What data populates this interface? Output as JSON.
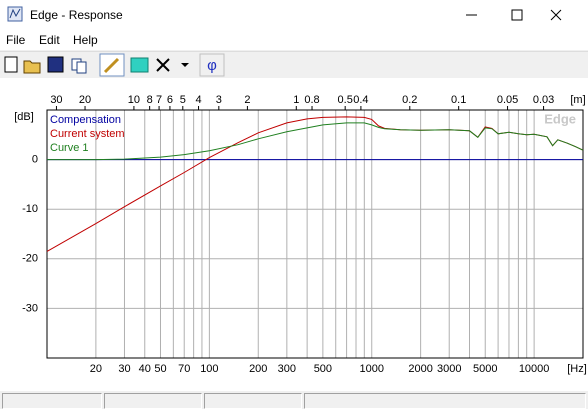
{
  "window": {
    "title": "Edge - Response",
    "menu": [
      "File",
      "Edit",
      "Help"
    ],
    "toolbar": {
      "phase_button": "φ"
    }
  },
  "chart_data": {
    "type": "line",
    "watermark": "Edge",
    "y_unit": "[dB]",
    "x_unit": "[Hz]",
    "x2_unit": "[m]",
    "x_scale": "log",
    "x2_scale": "log",
    "xlim": [
      10,
      20000
    ],
    "xticks": [
      20,
      30,
      40,
      50,
      70,
      100,
      200,
      300,
      500,
      1000,
      2000,
      3000,
      5000,
      10000
    ],
    "xgrid": [
      60,
      80,
      90,
      400,
      600,
      700,
      800,
      900,
      4000,
      6000,
      7000,
      8000,
      9000
    ],
    "x2lim": [
      34.3,
      0.01715
    ],
    "x2ticks": [
      30,
      20,
      10,
      8,
      7,
      6,
      5,
      4,
      3,
      2,
      1,
      0.8,
      0.5,
      0.4,
      0.2,
      0.1,
      0.05,
      0.03
    ],
    "ylim": [
      -40,
      10
    ],
    "yticks": [
      0,
      -10,
      -20,
      -30
    ],
    "grid": true,
    "x": [
      10,
      20,
      30,
      50,
      70,
      100,
      150,
      200,
      300,
      400,
      500,
      700,
      900,
      1000,
      1100,
      1200,
      1500,
      2000,
      3000,
      4000,
      4500,
      5000,
      5500,
      6000,
      7000,
      8000,
      9000,
      10000,
      12000,
      13000,
      14000,
      16000,
      18000,
      20000
    ],
    "series": [
      {
        "name": "Compensation",
        "color": "#0000a0",
        "values": [
          0,
          0,
          0,
          0,
          0,
          0,
          0,
          0,
          0,
          0,
          0,
          0,
          0,
          0,
          0,
          0,
          0,
          0,
          0,
          0,
          0,
          0,
          0,
          0,
          0,
          0,
          0,
          0,
          0,
          0,
          0,
          0,
          0,
          0
        ]
      },
      {
        "name": "Current system",
        "color": "#c00000",
        "values": [
          -18.5,
          -12.9,
          -9.5,
          -5.3,
          -2.6,
          0.4,
          3.4,
          5.4,
          7.4,
          8.2,
          8.5,
          8.6,
          8.5,
          8.1,
          6.8,
          6.3,
          6.0,
          5.9,
          6.0,
          5.8,
          4.5,
          6.6,
          6.3,
          5.2,
          5.5,
          5.2,
          5.0,
          5.1,
          4.6,
          2.8,
          4.0,
          3.3,
          2.6,
          1.9
        ]
      },
      {
        "name": "Curve 1",
        "color": "#208020",
        "values": [
          0,
          0,
          0.1,
          0.5,
          1.0,
          1.8,
          3.0,
          4.2,
          5.6,
          6.4,
          7.0,
          7.4,
          7.4,
          7.0,
          6.5,
          6.2,
          6.0,
          5.9,
          6.0,
          5.8,
          4.5,
          6.4,
          6.2,
          5.2,
          5.5,
          5.2,
          5.0,
          5.1,
          4.6,
          2.8,
          4.0,
          3.3,
          2.6,
          1.9
        ]
      }
    ]
  }
}
